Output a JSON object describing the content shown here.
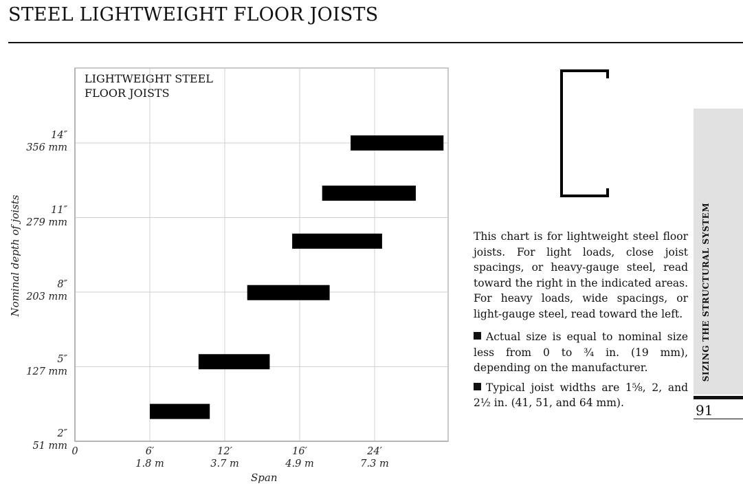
{
  "page": {
    "title": "STEEL LIGHTWEIGHT FLOOR JOISTS",
    "section_tab": "SIZING THE STRUCTURAL SYSTEM",
    "page_number": "91"
  },
  "description": {
    "paragraph": "This chart is for lightweight steel floor joists. For light loads, close joist spacings, or heavy-gauge steel, read toward the right in the indicated areas. For heavy loads, wide spacings, or light-gauge steel, read toward the left.",
    "bullet1": "Actual size is equal to nominal size less from 0 to ¾ in. (19 mm), depending on the manufacturer.",
    "bullet2": "Typical joist widths are 1⅝, 2, and 2½ in. (41, 51, and 64 mm)."
  },
  "chart_data": {
    "type": "bar",
    "orientation": "horizontal-range",
    "title_lines": [
      "LIGHTWEIGHT STEEL",
      "FLOOR JOISTS"
    ],
    "xlabel": "Span",
    "ylabel": "Nominal depth of joists",
    "x_ticks": [
      {
        "value": 0,
        "label": "0",
        "sub": ""
      },
      {
        "value": 6,
        "label": "6′",
        "sub": "1.8 m"
      },
      {
        "value": 12,
        "label": "12′",
        "sub": "3.7 m"
      },
      {
        "value": 16,
        "label": "16′",
        "sub": "4.9 m"
      },
      {
        "value": 24,
        "label": "24′",
        "sub": "7.3 m"
      }
    ],
    "y_ticks": [
      {
        "label": "2″",
        "sub": "51 mm"
      },
      {
        "label": "5″",
        "sub": "127 mm"
      },
      {
        "label": "8″",
        "sub": "203 mm"
      },
      {
        "label": "11″",
        "sub": "279 mm"
      },
      {
        "label": "14″",
        "sub": "356 mm"
      }
    ],
    "x_tick_positions": [
      0,
      1,
      2,
      3,
      4
    ],
    "xlim": [
      0,
      5
    ],
    "ylim": [
      2,
      17
    ],
    "y_tick_values": [
      2,
      5,
      8,
      11,
      14
    ],
    "grid": true,
    "series": [
      {
        "values": [
          {
            "depth_in": 3.2,
            "span_start": 1.0,
            "span_end": 1.8
          },
          {
            "depth_in": 5.2,
            "span_start": 1.65,
            "span_end": 2.6
          },
          {
            "depth_in": 7.98,
            "span_start": 2.3,
            "span_end": 3.4
          },
          {
            "depth_in": 10.05,
            "span_start": 2.9,
            "span_end": 4.1
          },
          {
            "depth_in": 11.98,
            "span_start": 3.3,
            "span_end": 4.55
          },
          {
            "depth_in": 14.0,
            "span_start": 3.68,
            "span_end": 4.92
          }
        ]
      }
    ]
  }
}
